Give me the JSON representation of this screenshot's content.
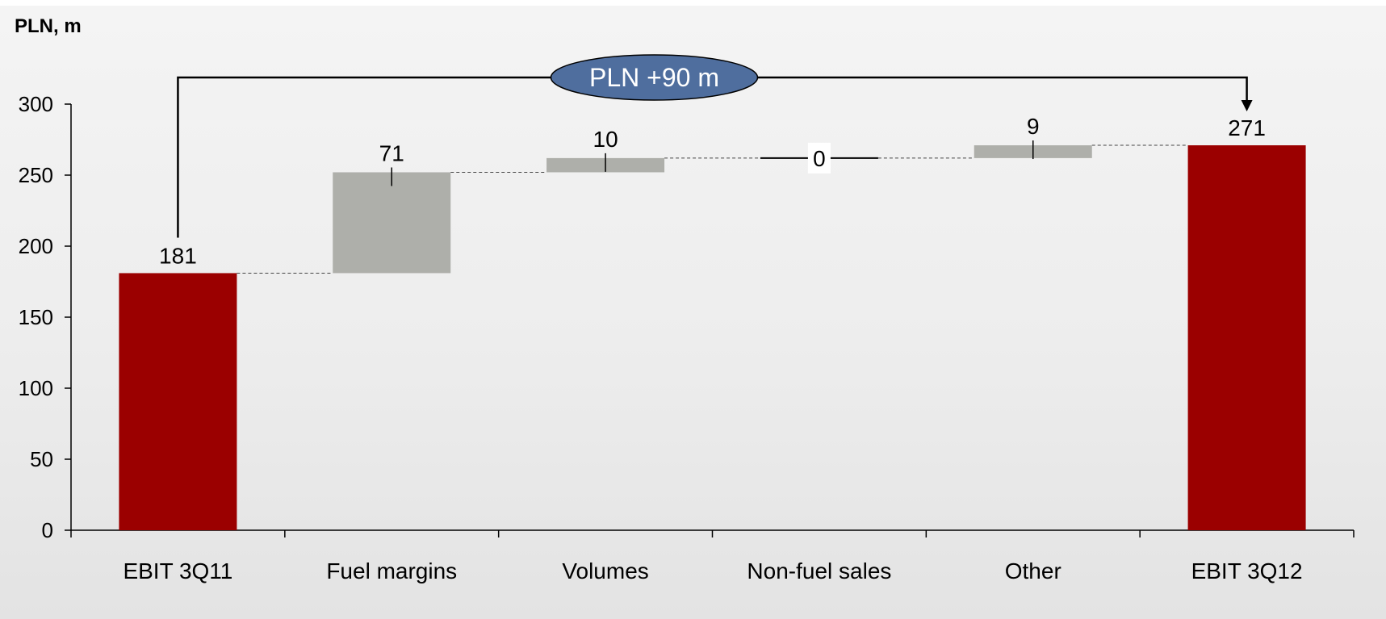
{
  "chart_data": {
    "type": "bar",
    "subtype": "waterfall",
    "ylabel": "PLN, m",
    "ylim": [
      0,
      300
    ],
    "yticks": [
      0,
      50,
      100,
      150,
      200,
      250,
      300
    ],
    "categories": [
      "EBIT 3Q11",
      "Fuel margins",
      "Volumes",
      "Non-fuel sales",
      "Other",
      "EBIT 3Q12"
    ],
    "values": [
      181,
      71,
      10,
      0,
      9,
      271
    ],
    "labels": [
      "181",
      "71",
      "10",
      "0",
      "9",
      "271"
    ],
    "kinds": [
      "total",
      "delta",
      "delta",
      "delta",
      "delta",
      "total"
    ],
    "annotation": "PLN +90 m",
    "colors": {
      "total": "#9B0000",
      "delta": "#AEAFAA",
      "annotation": "#4F6E9E",
      "background": "#EDEDED"
    }
  }
}
